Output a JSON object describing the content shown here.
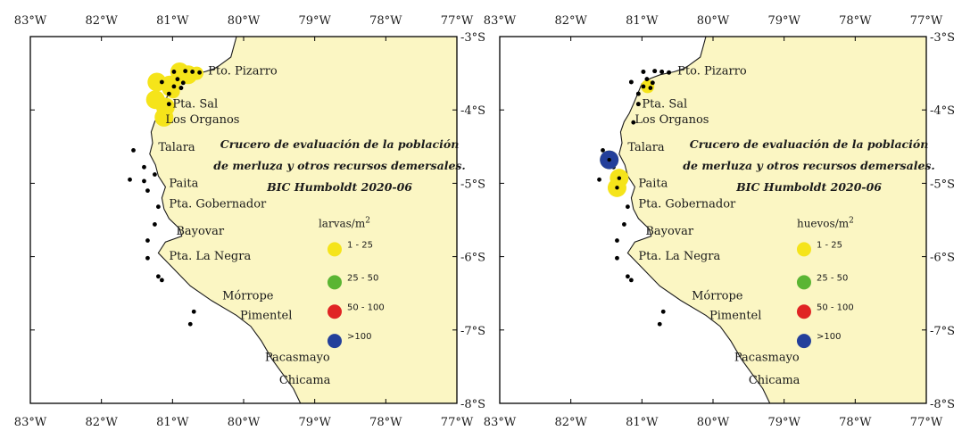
{
  "panels": [
    {
      "legend_title": "larvas/m",
      "legend_sup": "2",
      "large": [
        [
          -81.22,
          -3.62
        ],
        [
          -81.04,
          -3.66
        ],
        [
          -80.9,
          -3.48
        ],
        [
          -80.78,
          -3.52
        ],
        [
          -81.24,
          -3.86
        ],
        [
          -81.1,
          -3.96
        ],
        [
          -81.12,
          -4.1
        ]
      ],
      "medium": [
        [
          -80.66,
          -3.5
        ],
        [
          -81.05,
          -3.72
        ],
        [
          -80.96,
          -3.6
        ],
        [
          -80.99,
          -3.75
        ]
      ]
    },
    {
      "legend_title": "huevos/m",
      "legend_sup": "2",
      "large": [
        [
          -81.46,
          -4.68
        ],
        [
          -81.32,
          -4.93
        ],
        [
          -81.35,
          -5.06
        ]
      ],
      "medium": [
        [
          -80.92,
          -3.68
        ]
      ]
    }
  ],
  "shared": {
    "x_ticks": [
      "83°W",
      "82°W",
      "81°W",
      "80°W",
      "79°W",
      "78°W",
      "77°W"
    ],
    "y_ticks": [
      "-3°S",
      "-4°S",
      "-5°S",
      "-6°S",
      "-7°S",
      "-8°S"
    ],
    "lon_range": [
      -83,
      -77
    ],
    "lat_range": [
      -3,
      -8
    ],
    "cruise_title": [
      "Crucero de evaluación de la población",
      "de merluza y otros recursos demersales.",
      "BIC Humboldt 2020-06"
    ],
    "legend": [
      {
        "label": "1 - 25",
        "color": "#f5e41a"
      },
      {
        "label": "25 - 50",
        "color": "#5ab533"
      },
      {
        "label": "50 - 100",
        "color": "#e02424"
      },
      {
        "label": ">100",
        "color": "#233f9b"
      }
    ],
    "places": [
      {
        "name": "Pto. Pizarro",
        "lon": -80.5,
        "lat": -3.52
      },
      {
        "name": "Pta. Sal",
        "lon": -81.0,
        "lat": -3.97
      },
      {
        "name": "Los Organos",
        "lon": -81.1,
        "lat": -4.18
      },
      {
        "name": "Talara",
        "lon": -81.2,
        "lat": -4.56
      },
      {
        "name": "Paita",
        "lon": -81.05,
        "lat": -5.05
      },
      {
        "name": "Pta. Gobernador",
        "lon": -81.05,
        "lat": -5.33
      },
      {
        "name": "Bayovar",
        "lon": -80.95,
        "lat": -5.7
      },
      {
        "name": "Pta. La Negra",
        "lon": -81.05,
        "lat": -6.04
      },
      {
        "name": "Mórrope",
        "lon": -80.3,
        "lat": -6.58
      },
      {
        "name": "Pimentel",
        "lon": -80.05,
        "lat": -6.85
      },
      {
        "name": "Pacasmayo",
        "lon": -79.7,
        "lat": -7.42
      },
      {
        "name": "Chicama",
        "lon": -79.5,
        "lat": -7.73
      }
    ],
    "stations": [
      [
        -81.15,
        -3.62
      ],
      [
        -81.05,
        -3.78
      ],
      [
        -80.98,
        -3.68
      ],
      [
        -80.88,
        -3.7
      ],
      [
        -80.93,
        -3.58
      ],
      [
        -80.85,
        -3.63
      ],
      [
        -80.98,
        -3.48
      ],
      [
        -80.82,
        -3.47
      ],
      [
        -80.72,
        -3.48
      ],
      [
        -80.62,
        -3.49
      ],
      [
        -81.05,
        -3.92
      ],
      [
        -81.12,
        -4.17
      ],
      [
        -81.55,
        -4.55
      ],
      [
        -81.4,
        -4.78
      ],
      [
        -81.6,
        -4.95
      ],
      [
        -81.4,
        -4.97
      ],
      [
        -81.25,
        -4.88
      ],
      [
        -81.35,
        -5.1
      ],
      [
        -81.2,
        -5.32
      ],
      [
        -81.25,
        -5.56
      ],
      [
        -81.35,
        -5.78
      ],
      [
        -81.35,
        -6.02
      ],
      [
        -81.2,
        -6.27
      ],
      [
        -81.15,
        -6.32
      ],
      [
        -80.7,
        -6.75
      ],
      [
        -80.75,
        -6.92
      ]
    ]
  },
  "colors": {
    "land": "#fbf6c3",
    "coast": "#1a1a1a",
    "large_circle": "#f5e41a",
    "station_dot": "#000000"
  }
}
